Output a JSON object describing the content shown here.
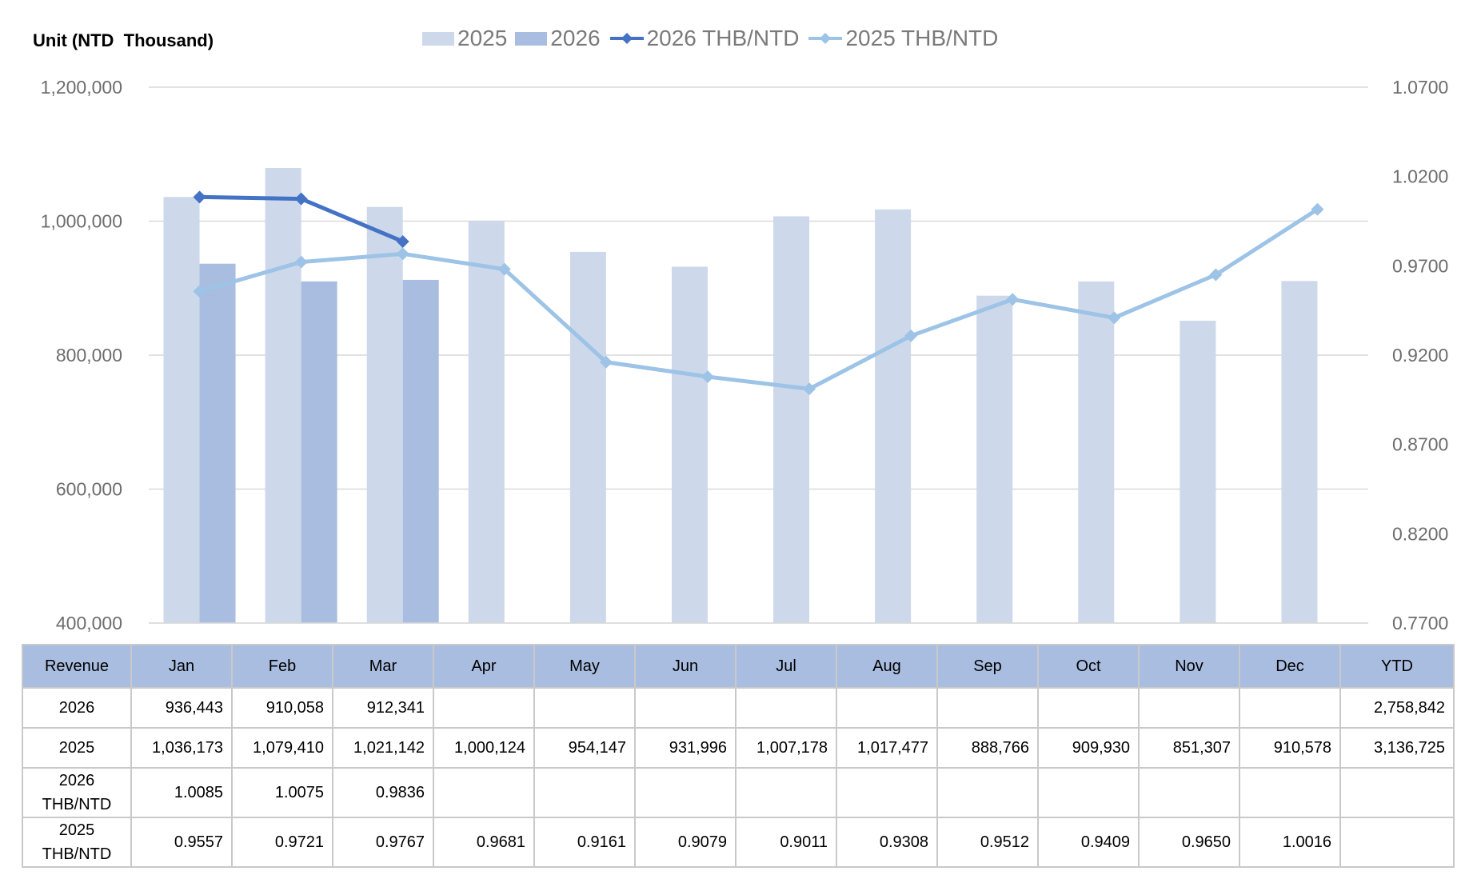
{
  "unit_label": "Unit (NTD  Thousand)",
  "legend": [
    {
      "label": "2025",
      "kind": "bar",
      "color": "#cdd8ea"
    },
    {
      "label": "2026",
      "kind": "bar",
      "color": "#a9bde0"
    },
    {
      "label": "2026 THB/NTD",
      "kind": "line",
      "color": "#4472c4"
    },
    {
      "label": "2025 THB/NTD",
      "kind": "line",
      "color": "#9dc3e6"
    }
  ],
  "chart_data": {
    "type": "bar",
    "categories": [
      "Jan",
      "Feb",
      "Mar",
      "Apr",
      "May",
      "Jun",
      "Jul",
      "Aug",
      "Sep",
      "Oct",
      "Nov",
      "Dec"
    ],
    "y_left": {
      "min": 400000,
      "max": 1200000,
      "ticks": [
        "1,200,000",
        "1,000,000",
        "800,000",
        "600,000",
        "400,000"
      ],
      "tick_values": [
        1200000,
        1000000,
        800000,
        600000,
        400000
      ]
    },
    "y_right": {
      "min": 0.77,
      "max": 1.07,
      "ticks": [
        "1.0700",
        "1.0200",
        "0.9700",
        "0.9200",
        "0.8700",
        "0.8200",
        "0.7700"
      ],
      "tick_values": [
        1.07,
        1.02,
        0.97,
        0.92,
        0.87,
        0.82,
        0.77
      ]
    },
    "bar_series": [
      {
        "name": "2025",
        "color": "#cdd8ea",
        "values": [
          1036173,
          1079410,
          1021142,
          1000124,
          954147,
          931996,
          1007178,
          1017477,
          888766,
          909930,
          851307,
          910578
        ]
      },
      {
        "name": "2026",
        "color": "#a9bde0",
        "values": [
          936443,
          910058,
          912341
        ]
      }
    ],
    "line_series": [
      {
        "name": "2026 THB/NTD",
        "color": "#4472c4",
        "values": [
          1.0085,
          1.0075,
          0.9836
        ]
      },
      {
        "name": "2025 THB/NTD",
        "color": "#9dc3e6",
        "values": [
          0.9557,
          0.9721,
          0.9767,
          0.9681,
          0.9161,
          0.9079,
          0.9011,
          0.9308,
          0.9512,
          0.9409,
          0.965,
          1.0016
        ]
      }
    ],
    "grid": true,
    "legend_position": "top"
  },
  "table": {
    "header": [
      "Revenue",
      "Jan",
      "Feb",
      "Mar",
      "Apr",
      "May",
      "Jun",
      "Jul",
      "Aug",
      "Sep",
      "Oct",
      "Nov",
      "Dec",
      "YTD"
    ],
    "rows": [
      {
        "label": "2026",
        "cells": [
          "936,443",
          "910,058",
          "912,341",
          "",
          "",
          "",
          "",
          "",
          "",
          "",
          "",
          "",
          "2,758,842"
        ]
      },
      {
        "label": "2025",
        "cells": [
          "1,036,173",
          "1,079,410",
          "1,021,142",
          "1,000,124",
          "954,147",
          "931,996",
          "1,007,178",
          "1,017,477",
          "888,766",
          "909,930",
          "851,307",
          "910,578",
          "3,136,725"
        ]
      },
      {
        "label": "2026\nTHB/NTD",
        "cells": [
          "1.0085",
          "1.0075",
          "0.9836",
          "",
          "",
          "",
          "",
          "",
          "",
          "",
          "",
          "",
          ""
        ]
      },
      {
        "label": "2025\nTHB/NTD",
        "cells": [
          "0.9557",
          "0.9721",
          "0.9767",
          "0.9681",
          "0.9161",
          "0.9079",
          "0.9011",
          "0.9308",
          "0.9512",
          "0.9409",
          "0.9650",
          "1.0016",
          ""
        ]
      }
    ]
  }
}
